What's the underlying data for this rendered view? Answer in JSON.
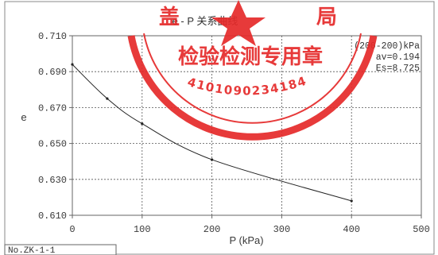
{
  "chart_data": {
    "type": "line",
    "title": "e - P 关系曲线",
    "xlabel": "P (kPa)",
    "ylabel": "e",
    "xlim": [
      0,
      500
    ],
    "ylim": [
      0.61,
      0.71
    ],
    "x_ticks": [
      0,
      100,
      200,
      300,
      400,
      500
    ],
    "y_ticks": [
      0.61,
      0.63,
      0.65,
      0.67,
      0.69,
      0.71
    ],
    "x_tick_labels": [
      "0",
      "100",
      "200",
      "300",
      "400",
      "500"
    ],
    "y_tick_labels": [
      "0.610",
      "0.630",
      "0.650",
      "0.670",
      "0.690",
      "0.710"
    ],
    "grid": true,
    "series": [
      {
        "x": [
          0,
          50,
          100,
          200,
          400
        ],
        "y": [
          0.694,
          0.675,
          0.661,
          0.641,
          0.618
        ]
      }
    ],
    "annotation": [
      "(200-200)kPa",
      "av=0.194",
      "Es=8.725"
    ]
  },
  "sample_id": "No.ZK-1-1",
  "stamp": {
    "main_text": "检验检测专用章",
    "number": "4101090234184",
    "fragments": [
      "盖",
      "局"
    ],
    "color": "#e52a2a"
  },
  "colors": {
    "line": "#222222",
    "grid": "#555555",
    "frame": "#666666"
  }
}
